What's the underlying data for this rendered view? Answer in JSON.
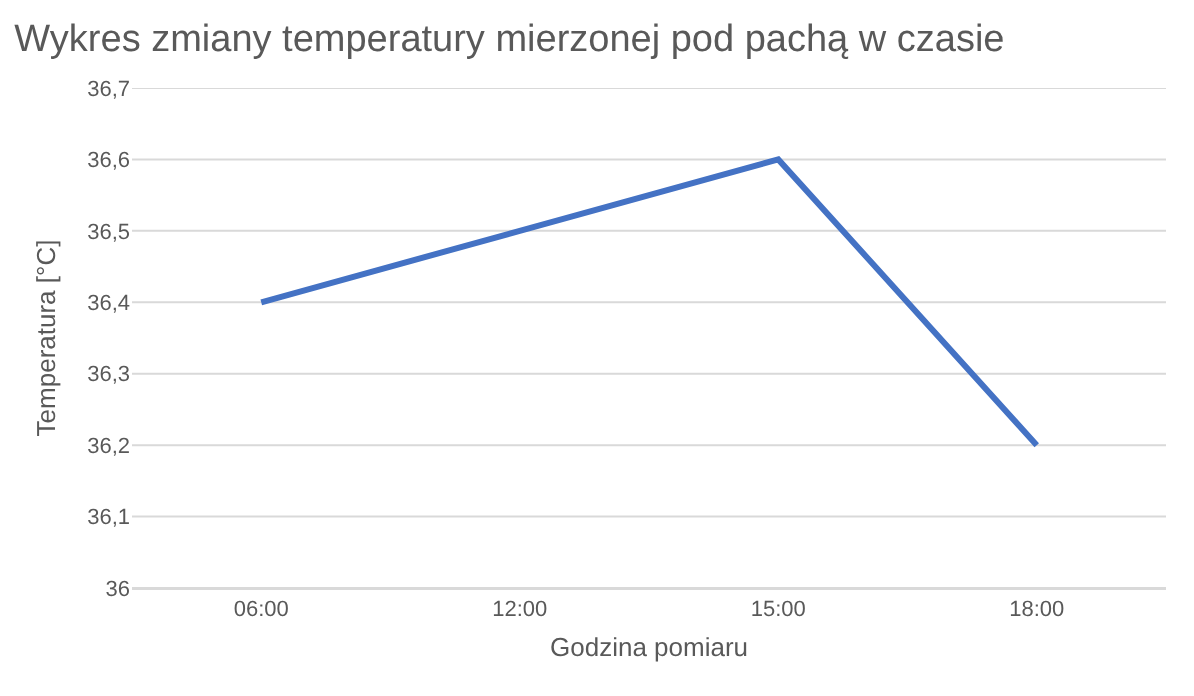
{
  "chart_data": {
    "type": "line",
    "title": "Wykres zmiany temperatury mierzonej pod pachą w czasie",
    "xlabel": "Godzina pomiaru",
    "ylabel": "Temperatura [°C]",
    "categories": [
      "06:00",
      "12:00",
      "15:00",
      "18:00"
    ],
    "series": [
      {
        "color": "#4472c4",
        "values": [
          36.4,
          36.5,
          36.6,
          36.2
        ]
      }
    ],
    "ylim": [
      36,
      36.7
    ],
    "yticks": [
      36,
      {
        "value": 36.1,
        "label": "36,1"
      },
      {
        "value": 36.2,
        "label": "36,2"
      },
      {
        "value": 36.3,
        "label": "36,3"
      },
      {
        "value": 36.4,
        "label": "36,4"
      },
      {
        "value": 36.5,
        "label": "36,5"
      },
      {
        "value": 36.6,
        "label": "36,6"
      },
      {
        "value": 36.7,
        "label": "36,7"
      }
    ],
    "grid": "y",
    "marker": "none",
    "line_style": "solid"
  }
}
